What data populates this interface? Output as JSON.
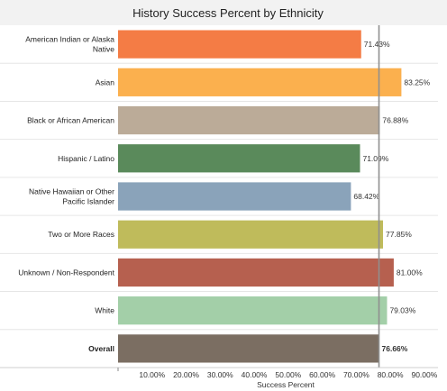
{
  "chart_data": {
    "type": "bar",
    "orientation": "horizontal",
    "title": "History Success Percent by Ethnicity",
    "xlabel": "Success Percent",
    "ylabel": "",
    "xlim": [
      0,
      94
    ],
    "x_ticks": [
      10,
      20,
      30,
      40,
      50,
      60,
      70,
      80,
      90
    ],
    "x_tick_labels": [
      "10.00%",
      "20.00%",
      "30.00%",
      "40.00%",
      "50.00%",
      "60.00%",
      "70.00%",
      "80.00%",
      "90.00%"
    ],
    "reference_line": 76.66,
    "grid": false,
    "categories": [
      "American Indian or Alaska Native",
      "Asian",
      "Black or African American",
      "Hispanic / Latino",
      "Native Hawaiian or Other Pacific Islander",
      "Two or More Races",
      "Unknown / Non-Respondent",
      "White",
      "Overall"
    ],
    "category_lines": [
      [
        "American Indian or Alaska",
        "Native"
      ],
      [
        "Asian"
      ],
      [
        "Black or African American"
      ],
      [
        "Hispanic / Latino"
      ],
      [
        "Native Hawaiian or Other",
        "Pacific Islander"
      ],
      [
        "Two or More Races"
      ],
      [
        "Unknown / Non-Respondent"
      ],
      [
        "White"
      ],
      [
        "Overall"
      ]
    ],
    "values": [
      71.43,
      83.25,
      76.88,
      71.09,
      68.42,
      77.85,
      81.0,
      79.03,
      76.66
    ],
    "value_labels": [
      "71.43%",
      "83.25%",
      "76.88%",
      "71.09%",
      "68.42%",
      "77.85%",
      "81.00%",
      "79.03%",
      "76.66%"
    ],
    "colors": [
      "#f47c45",
      "#fbb04e",
      "#bbab98",
      "#5a8a5b",
      "#8aa3ba",
      "#bfbb5b",
      "#b6604f",
      "#a3cfa8",
      "#7b6e62"
    ],
    "bold_categories": [
      "Overall"
    ]
  }
}
